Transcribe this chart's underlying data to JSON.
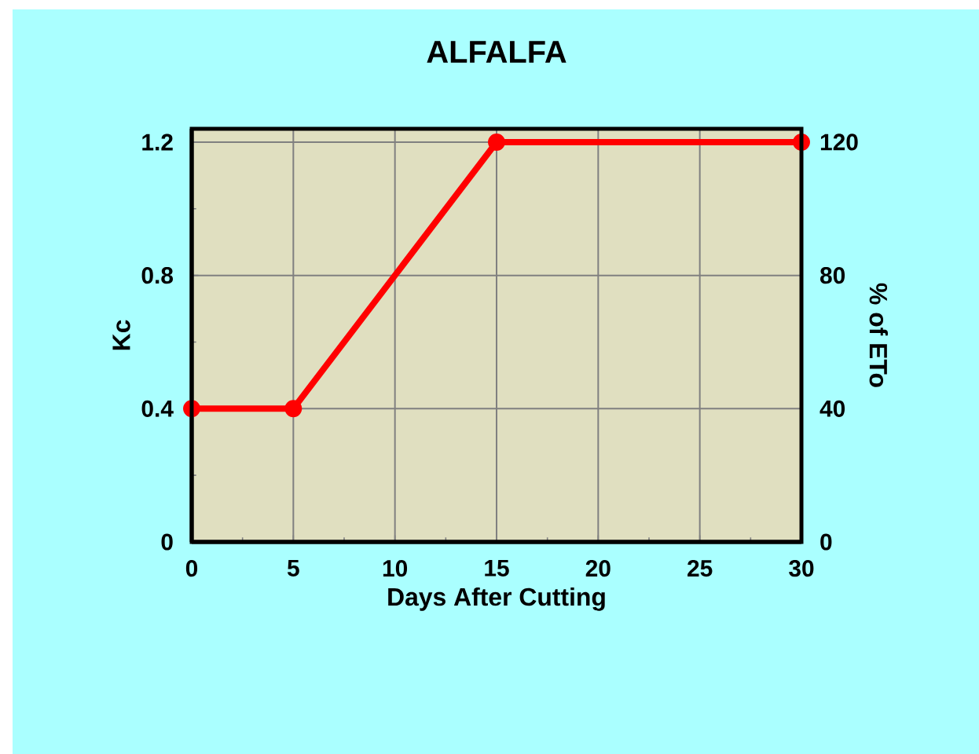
{
  "chart_data": {
    "type": "line",
    "title": "ALFALFA",
    "xlabel": "Days After Cutting",
    "ylabel": "Kc",
    "y2label": "% of ETo",
    "x": [
      0,
      5,
      15,
      30
    ],
    "series": [
      {
        "color": "#ff0000",
        "values": [
          0.4,
          0.4,
          1.2,
          1.2
        ]
      }
    ],
    "xlim": [
      0,
      30
    ],
    "xticks": [
      0,
      5,
      10,
      15,
      20,
      25,
      30
    ],
    "ylim": [
      0,
      1.24
    ],
    "yticks": [
      0,
      0.4,
      0.8,
      1.2
    ],
    "y2lim": [
      0,
      124
    ],
    "y2ticks": [
      0,
      40,
      80,
      120
    ],
    "grid": true,
    "marker": "circle",
    "line_style": "solid"
  }
}
